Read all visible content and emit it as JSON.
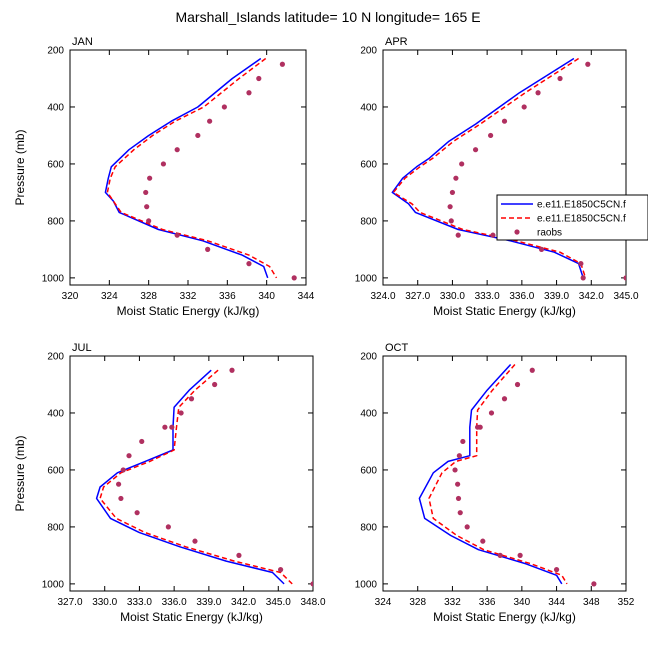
{
  "figure": {
    "title": "Marshall_Islands  latitude= 10 N longitude= 165 E"
  },
  "legend": {
    "entries": [
      "e.e11.E1850C5CN.f",
      "e.e11.E1850C5CN.f",
      "raobs"
    ]
  },
  "colors": {
    "series_1": "#0000ff",
    "series_2": "#ff0000",
    "raobs": "#b03060"
  },
  "chart_data": [
    {
      "type": "line",
      "panel": "JAN",
      "title": "JAN",
      "xlabel": "Moist Static Energy (kJ/kg)",
      "ylabel": "Pressure (mb)",
      "xlim": [
        320,
        344
      ],
      "ylim": [
        200,
        1025
      ],
      "y_reversed": true,
      "grid": false,
      "xticks": [
        320,
        324,
        328,
        332,
        336,
        340,
        344
      ],
      "xtick_labels": [
        "320",
        "324",
        "328",
        "332",
        "336",
        "340",
        "344"
      ],
      "yticks": [
        200,
        400,
        600,
        800,
        1000
      ],
      "ytick_labels": [
        "200",
        "400",
        "600",
        "800",
        "1000"
      ],
      "series": [
        {
          "key": "model_1",
          "style": "solid",
          "x": [
            339.4,
            336.5,
            333.0,
            330.3,
            328.0,
            326.0,
            324.2,
            323.9,
            323.6,
            324.4,
            325.0,
            329.0,
            333.5,
            337.5,
            339.7,
            340.1
          ],
          "y": [
            230,
            300,
            400,
            450,
            500,
            550,
            610,
            650,
            700,
            730,
            770,
            830,
            870,
            920,
            960,
            1000
          ]
        },
        {
          "key": "model_2",
          "style": "dashed",
          "x": [
            339.9,
            337.2,
            333.6,
            330.7,
            328.4,
            326.5,
            324.6,
            324.1,
            323.8,
            324.4,
            325.2,
            329.4,
            334.0,
            338.2,
            340.3,
            341.0
          ],
          "y": [
            230,
            300,
            400,
            450,
            500,
            550,
            610,
            650,
            700,
            730,
            770,
            830,
            870,
            920,
            960,
            1000
          ]
        },
        {
          "key": "raobs",
          "style": "markers",
          "x": [
            341.6,
            339.2,
            338.2,
            335.7,
            334.2,
            333.0,
            330.9,
            329.5,
            328.1,
            327.7,
            327.8,
            328.0,
            330.9,
            334.0,
            338.2,
            342.8
          ],
          "y": [
            250,
            300,
            350,
            400,
            450,
            500,
            550,
            600,
            650,
            700,
            750,
            800,
            850,
            900,
            950,
            1000
          ]
        }
      ]
    },
    {
      "type": "line",
      "panel": "APR",
      "title": "APR",
      "xlabel": "Moist Static Energy (kJ/kg)",
      "ylabel": "",
      "xlim": [
        324,
        345
      ],
      "ylim": [
        200,
        1025
      ],
      "y_reversed": true,
      "grid": false,
      "xticks": [
        324,
        327,
        330,
        333,
        336,
        339,
        342,
        345
      ],
      "xtick_labels": [
        "324.0",
        "327.0",
        "330.0",
        "333.0",
        "336.0",
        "339.0",
        "342.0",
        "345.0"
      ],
      "yticks": [
        200,
        400,
        600,
        800,
        1000
      ],
      "ytick_labels": [
        "200",
        "400",
        "600",
        "800",
        "1000"
      ],
      "series": [
        {
          "key": "model_1",
          "style": "solid",
          "x": [
            340.5,
            335.8,
            332.0,
            329.7,
            328.0,
            326.9,
            325.7,
            324.8,
            326.2,
            326.8,
            330.5,
            335.0,
            338.8,
            340.9,
            341.3
          ],
          "y": [
            230,
            350,
            460,
            520,
            580,
            610,
            650,
            700,
            740,
            770,
            830,
            870,
            910,
            950,
            1000
          ]
        },
        {
          "key": "model_2",
          "style": "dashed",
          "x": [
            340.9,
            336.3,
            332.4,
            330.1,
            328.3,
            327.2,
            325.9,
            324.9,
            326.5,
            327.2,
            330.9,
            335.5,
            339.3,
            341.1,
            341.5
          ],
          "y": [
            230,
            350,
            460,
            520,
            580,
            610,
            650,
            700,
            740,
            770,
            830,
            870,
            910,
            950,
            1000
          ]
        },
        {
          "key": "raobs",
          "style": "markers",
          "x": [
            341.7,
            339.3,
            337.4,
            336.2,
            334.5,
            333.3,
            332.0,
            330.8,
            330.3,
            330.0,
            329.8,
            329.9,
            330.5,
            333.5,
            337.7,
            341.1,
            341.3,
            345.0
          ],
          "y": [
            250,
            300,
            350,
            400,
            450,
            500,
            550,
            600,
            650,
            700,
            750,
            800,
            850,
            850,
            900,
            950,
            1000,
            1000
          ]
        }
      ]
    },
    {
      "type": "line",
      "panel": "JUL",
      "title": "JUL",
      "xlabel": "Moist Static Energy (kJ/kg)",
      "ylabel": "Pressure (mb)",
      "xlim": [
        327,
        348
      ],
      "ylim": [
        200,
        1025
      ],
      "y_reversed": true,
      "grid": false,
      "xticks": [
        327,
        330,
        333,
        336,
        339,
        342,
        345,
        348
      ],
      "xtick_labels": [
        "327.0",
        "330.0",
        "333.0",
        "336.0",
        "339.0",
        "342.0",
        "345.0",
        "348.0"
      ],
      "yticks": [
        200,
        400,
        600,
        800,
        1000
      ],
      "ytick_labels": [
        "200",
        "400",
        "600",
        "800",
        "1000"
      ],
      "series": [
        {
          "key": "model_1",
          "style": "solid",
          "x": [
            339.2,
            337.3,
            336.0,
            335.9,
            335.9,
            333.5,
            331.1,
            329.6,
            329.3,
            330.5,
            333.0,
            336.5,
            340.5,
            344.5,
            345.5
          ],
          "y": [
            250,
            320,
            380,
            450,
            530,
            570,
            610,
            660,
            700,
            770,
            820,
            870,
            920,
            960,
            1000
          ]
        },
        {
          "key": "model_2",
          "style": "dashed",
          "x": [
            339.8,
            337.8,
            336.4,
            336.2,
            336.0,
            333.9,
            331.4,
            329.9,
            329.6,
            331.0,
            333.5,
            337.0,
            341.2,
            345.2,
            346.2
          ],
          "y": [
            250,
            320,
            380,
            450,
            530,
            570,
            610,
            660,
            700,
            770,
            820,
            870,
            920,
            960,
            1000
          ]
        },
        {
          "key": "raobs",
          "style": "markers",
          "x": [
            341.0,
            339.5,
            337.5,
            336.6,
            335.8,
            335.2,
            333.2,
            332.1,
            331.6,
            331.2,
            331.4,
            332.8,
            335.5,
            337.8,
            341.6,
            345.2,
            348.0
          ],
          "y": [
            250,
            300,
            350,
            400,
            450,
            450,
            500,
            550,
            600,
            650,
            700,
            750,
            800,
            850,
            900,
            950,
            1000
          ]
        }
      ]
    },
    {
      "type": "line",
      "panel": "OCT",
      "title": "OCT",
      "xlabel": "Moist Static Energy (kJ/kg)",
      "ylabel": "",
      "xlim": [
        324,
        352
      ],
      "ylim": [
        200,
        1025
      ],
      "y_reversed": true,
      "grid": false,
      "xticks": [
        324,
        328,
        332,
        336,
        340,
        344,
        348,
        352
      ],
      "xtick_labels": [
        "324",
        "328",
        "332",
        "336",
        "340",
        "344",
        "348",
        "352"
      ],
      "yticks": [
        200,
        400,
        600,
        800,
        1000
      ],
      "ytick_labels": [
        "200",
        "400",
        "600",
        "800",
        "1000"
      ],
      "series": [
        {
          "key": "model_1",
          "style": "solid",
          "x": [
            338.7,
            336.0,
            334.2,
            334.0,
            334.0,
            331.5,
            329.8,
            328.2,
            328.8,
            331.8,
            335.0,
            340.5,
            344.0,
            344.6
          ],
          "y": [
            230,
            320,
            390,
            450,
            550,
            570,
            610,
            700,
            770,
            830,
            880,
            930,
            970,
            1000
          ]
        },
        {
          "key": "model_2",
          "style": "dashed",
          "x": [
            339.2,
            336.6,
            334.9,
            334.8,
            334.8,
            332.4,
            330.8,
            329.3,
            329.8,
            332.5,
            335.6,
            341.1,
            344.6,
            345.2
          ],
          "y": [
            230,
            320,
            390,
            450,
            550,
            570,
            610,
            700,
            770,
            830,
            880,
            930,
            970,
            1000
          ]
        },
        {
          "key": "raobs",
          "style": "markers",
          "x": [
            341.2,
            339.5,
            338.0,
            336.5,
            335.2,
            334.9,
            333.2,
            332.8,
            332.3,
            332.6,
            332.7,
            332.9,
            333.7,
            335.5,
            337.5,
            339.8,
            344.0,
            348.3
          ],
          "y": [
            250,
            300,
            350,
            400,
            450,
            450,
            500,
            550,
            600,
            650,
            700,
            750,
            800,
            850,
            900,
            900,
            950,
            1000
          ]
        }
      ]
    }
  ]
}
